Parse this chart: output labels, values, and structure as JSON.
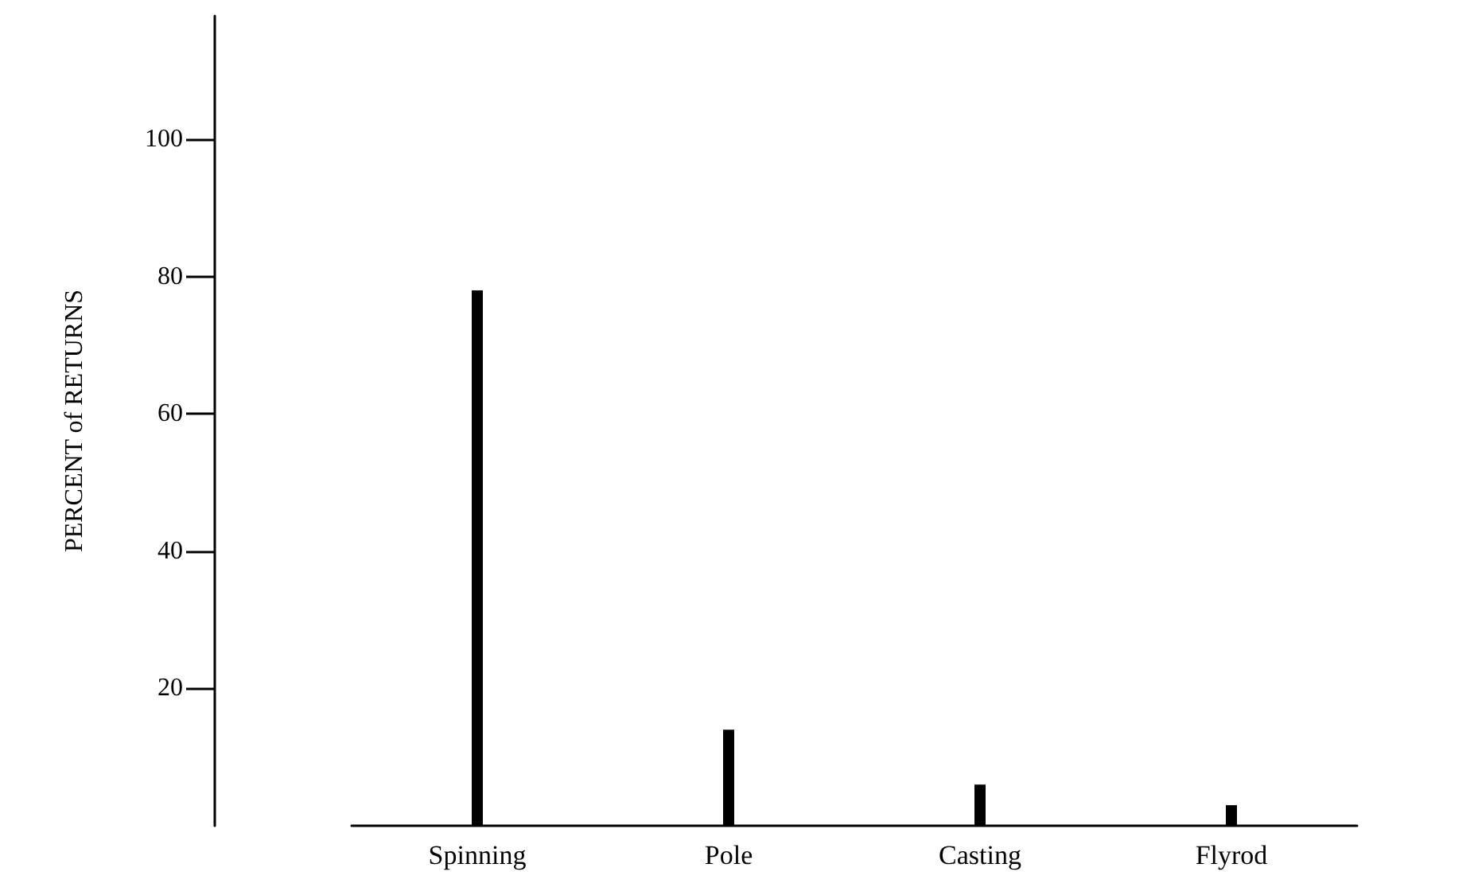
{
  "chart_data": {
    "type": "bar",
    "ylabel": "PERCENT of RETURNS",
    "categories": [
      "Spinning",
      "Pole",
      "Casting",
      "Flyrod"
    ],
    "values": [
      78,
      14,
      6,
      3
    ],
    "color": "#000000",
    "ylim": [
      0,
      118
    ],
    "yticks": [
      20,
      40,
      60,
      80,
      100
    ]
  }
}
